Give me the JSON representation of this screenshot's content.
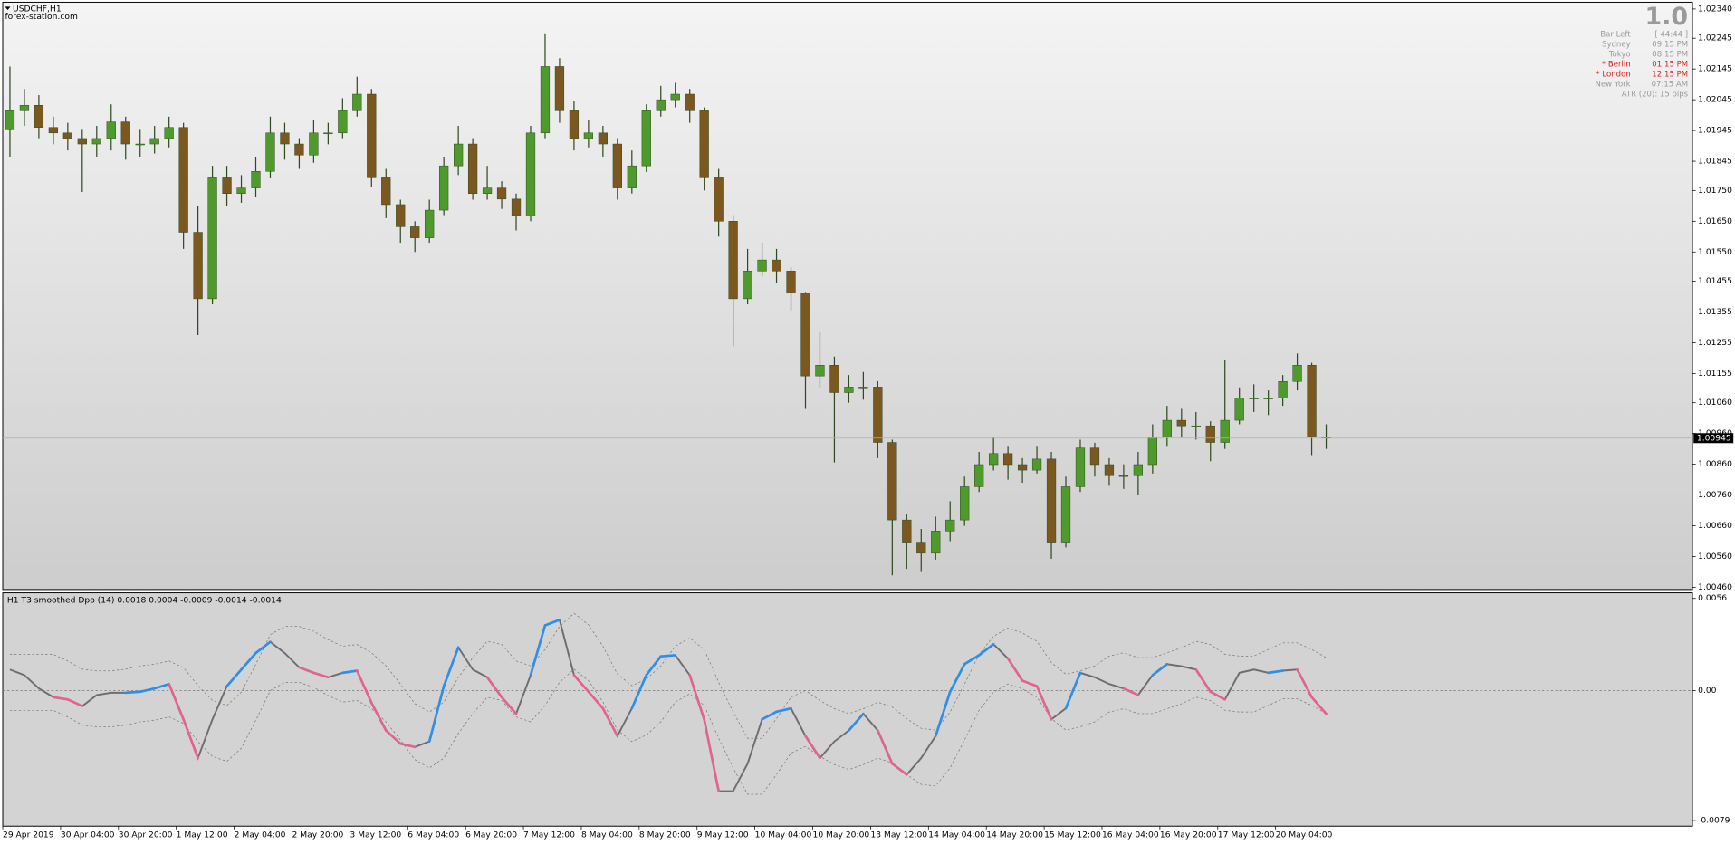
{
  "header": {
    "symbol": "USDCHF,H1",
    "source": "forex-station.com"
  },
  "info_panel": {
    "big": "1.0",
    "rows": [
      {
        "label": "Bar Left",
        "value": "[ 44:44 ]",
        "color": "#9a9a9a"
      },
      {
        "label": "Sydney",
        "value": "09:15 PM",
        "color": "#9a9a9a"
      },
      {
        "label": "Tokyo",
        "value": "08:15 PM",
        "color": "#9a9a9a"
      },
      {
        "label": "* Berlin",
        "value": "01:15 PM",
        "color": "#e02020"
      },
      {
        "label": "* London",
        "value": "12:15 PM",
        "color": "#e02020"
      },
      {
        "label": "New York",
        "value": "07:15 AM",
        "color": "#9a9a9a"
      },
      {
        "label": "ATR (20): 15 pips",
        "value": null,
        "color": "#9a9a9a"
      }
    ]
  },
  "chart_data": [
    {
      "type": "candlestick",
      "categories": [
        "29 Apr 2019",
        null,
        null,
        null,
        "30 Apr 04:00",
        null,
        null,
        null,
        "30 Apr 20:00",
        null,
        null,
        null,
        "1 May 12:00",
        null,
        null,
        null,
        "2 May 04:00",
        null,
        null,
        null,
        "2 May 20:00",
        null,
        null,
        null,
        "3 May 12:00",
        null,
        null,
        null,
        "6 May 04:00",
        null,
        null,
        null,
        "6 May 20:00",
        null,
        null,
        null,
        "7 May 12:00",
        null,
        null,
        null,
        "8 May 04:00",
        null,
        null,
        null,
        "8 May 20:00",
        null,
        null,
        null,
        "9 May 12:00",
        null,
        null,
        null,
        "10 May 04:00",
        null,
        null,
        null,
        "10 May 20:00",
        null,
        null,
        null,
        "13 May 12:00",
        null,
        null,
        null,
        "14 May 04:00",
        null,
        null,
        null,
        "14 May 20:00",
        null,
        null,
        null,
        "15 May 12:00",
        null,
        null,
        null,
        "16 May 04:00",
        null,
        null,
        null,
        "16 May 20:00",
        null,
        null,
        null,
        "17 May 12:00",
        null,
        null,
        null,
        "20 May 04:00",
        null,
        null,
        null
      ],
      "open": [
        1.0195,
        1.02009,
        1.02027,
        1.01955,
        1.01937,
        1.01919,
        1.01901,
        1.01919,
        1.01973,
        1.01901,
        1.01901,
        1.01919,
        1.01955,
        1.01614,
        1.01398,
        1.01794,
        1.0174,
        1.01758,
        1.01812,
        1.01937,
        1.01901,
        1.01865,
        1.01937,
        1.01937,
        1.02009,
        1.02063,
        1.01794,
        1.01704,
        1.01632,
        1.01596,
        1.01686,
        1.0183,
        1.01901,
        1.0174,
        1.01758,
        1.01722,
        1.01668,
        1.01937,
        1.02153,
        1.02009,
        1.01919,
        1.01937,
        1.01901,
        1.01758,
        1.0183,
        1.02009,
        1.02045,
        1.02063,
        1.02009,
        1.01794,
        1.0165,
        1.01398,
        1.01488,
        1.01524,
        1.01488,
        1.01416,
        1.01147,
        1.01182,
        1.01093,
        1.01111,
        1.01111,
        1.00931,
        1.00679,
        1.00607,
        1.00571,
        1.00643,
        1.00679,
        1.00787,
        1.00859,
        1.00895,
        1.00859,
        1.00841,
        1.00877,
        1.00607,
        1.00787,
        1.00913,
        1.00859,
        1.00823,
        1.00823,
        1.00859,
        1.00949,
        1.01003,
        1.00985,
        1.00985,
        1.00931,
        1.01003,
        1.01075,
        1.01075,
        1.01075,
        1.01129,
        1.01182,
        1.00949
      ],
      "high": [
        1.02153,
        1.0208,
        1.0206,
        1.0199,
        1.0197,
        1.0195,
        1.0196,
        1.0203,
        1.0199,
        1.0195,
        1.0196,
        1.0199,
        1.0197,
        1.017,
        1.0183,
        1.0183,
        1.018,
        1.0186,
        1.0199,
        1.0197,
        1.0192,
        1.0198,
        1.0197,
        1.0205,
        1.0212,
        1.0208,
        1.0182,
        1.0172,
        1.0165,
        1.0172,
        1.0186,
        1.0196,
        1.0192,
        1.0183,
        1.0178,
        1.0174,
        1.0196,
        1.02261,
        1.0218,
        1.0204,
        1.0198,
        1.0196,
        1.0192,
        1.0188,
        1.0203,
        1.0209,
        1.021,
        1.0208,
        1.0202,
        1.0182,
        1.0167,
        1.0156,
        1.0158,
        1.0156,
        1.015,
        1.0142,
        1.0129,
        1.0121,
        1.0115,
        1.0116,
        1.0113,
        1.0094,
        1.007,
        1.0065,
        1.0069,
        1.0074,
        1.0082,
        1.009,
        1.0095,
        1.0092,
        1.0088,
        1.0092,
        1.009,
        1.0082,
        1.0094,
        1.0093,
        1.0088,
        1.0086,
        1.009,
        1.0099,
        1.0105,
        1.0104,
        1.0103,
        1.01,
        1.012,
        1.0111,
        1.0112,
        1.011,
        1.0115,
        1.0122,
        1.0119,
        1.0099
      ],
      "low": [
        1.0186,
        1.0196,
        1.0192,
        1.019,
        1.0188,
        1.01745,
        1.0186,
        1.0188,
        1.0185,
        1.0186,
        1.0187,
        1.0189,
        1.0156,
        1.0128,
        1.0138,
        1.017,
        1.0171,
        1.0173,
        1.0179,
        1.0185,
        1.0182,
        1.0184,
        1.019,
        1.0192,
        1.0199,
        1.0176,
        1.0166,
        1.0158,
        1.0155,
        1.0158,
        1.0167,
        1.018,
        1.0172,
        1.0172,
        1.0169,
        1.0162,
        1.0165,
        1.0192,
        1.0197,
        1.0188,
        1.0189,
        1.0186,
        1.0172,
        1.0174,
        1.0181,
        1.0199,
        1.0202,
        1.0197,
        1.0175,
        1.016,
        1.01244,
        1.0138,
        1.0147,
        1.0145,
        1.0136,
        1.0104,
        1.0111,
        1.00866,
        1.0106,
        1.0107,
        1.0088,
        1.00499,
        1.0052,
        1.0051,
        1.0055,
        1.0061,
        1.0066,
        1.0077,
        1.0084,
        1.0081,
        1.008,
        1.0083,
        1.00553,
        1.0059,
        1.0077,
        1.0082,
        1.0079,
        1.0078,
        1.0076,
        1.0083,
        1.0092,
        1.0095,
        1.0094,
        1.0087,
        1.0091,
        1.0099,
        1.0103,
        1.0102,
        1.0105,
        1.011,
        1.0089,
        1.0091
      ],
      "close": [
        1.02009,
        1.02027,
        1.01955,
        1.01937,
        1.01919,
        1.01901,
        1.01919,
        1.01973,
        1.01901,
        1.01901,
        1.01919,
        1.01955,
        1.01614,
        1.01398,
        1.01794,
        1.0174,
        1.01758,
        1.01812,
        1.01937,
        1.01901,
        1.01865,
        1.01937,
        1.01937,
        1.02009,
        1.02063,
        1.01794,
        1.01704,
        1.01632,
        1.01596,
        1.01686,
        1.0183,
        1.01901,
        1.0174,
        1.01758,
        1.01722,
        1.01668,
        1.01937,
        1.02153,
        1.02009,
        1.01919,
        1.01937,
        1.01901,
        1.01758,
        1.0183,
        1.02009,
        1.02045,
        1.02063,
        1.02009,
        1.01794,
        1.0165,
        1.01398,
        1.01488,
        1.01524,
        1.01488,
        1.01416,
        1.01147,
        1.01182,
        1.01093,
        1.01111,
        1.01111,
        1.00931,
        1.00679,
        1.00607,
        1.00571,
        1.00643,
        1.00679,
        1.00787,
        1.00859,
        1.00895,
        1.00859,
        1.00841,
        1.00877,
        1.00607,
        1.00787,
        1.00913,
        1.00859,
        1.00823,
        1.00823,
        1.00859,
        1.00949,
        1.01003,
        1.00985,
        1.00985,
        1.00931,
        1.01003,
        1.01075,
        1.01075,
        1.01075,
        1.01129,
        1.01182,
        1.00949,
        1.00945
      ],
      "up_color": "#4f9a2c",
      "down_color": "#7a5820",
      "wick_color": "#2f4a20",
      "ylim": [
        1.00453,
        1.02362
      ],
      "yticks": [
        {
          "value": 1.0234,
          "label": "1.02340"
        },
        {
          "value": 1.02245,
          "label": "1.02245"
        },
        {
          "value": 1.02145,
          "label": "1.02145"
        },
        {
          "value": 1.02045,
          "label": "1.02045"
        },
        {
          "value": 1.01945,
          "label": "1.01945"
        },
        {
          "value": 1.01845,
          "label": "1.01845"
        },
        {
          "value": 1.0175,
          "label": "1.01750"
        },
        {
          "value": 1.0165,
          "label": "1.01650"
        },
        {
          "value": 1.0155,
          "label": "1.01550"
        },
        {
          "value": 1.01455,
          "label": "1.01455"
        },
        {
          "value": 1.01355,
          "label": "1.01355"
        },
        {
          "value": 1.01255,
          "label": "1.01255"
        },
        {
          "value": 1.01155,
          "label": "1.01155"
        },
        {
          "value": 1.0106,
          "label": "1.01060"
        },
        {
          "value": 1.0096,
          "label": "1.00960"
        },
        {
          "value": 1.0086,
          "label": "1.00860"
        },
        {
          "value": 1.0076,
          "label": "1.00760"
        },
        {
          "value": 1.0066,
          "label": "1.00660"
        },
        {
          "value": 1.0056,
          "label": "1.00560"
        },
        {
          "value": 1.0046,
          "label": "1.00460"
        }
      ],
      "current_price": {
        "value": 1.00945,
        "label": "1.00945"
      }
    },
    {
      "type": "line",
      "title": "H1 T3 smoothed Dpo (14) 0.0018 0.0004 -0.0009 -0.0014 -0.0014",
      "up_color": "#2f8ee8",
      "down_color": "#e0648c",
      "series": [
        {
          "color": "#6e6e6e",
          "style": "solid",
          "values": [
            0.00128,
            0.00094,
            0.00013,
            -0.0004,
            -0.00054,
            -0.00094,
            -0.00027,
            -0.00013,
            -0.00013,
            -7e-05,
            0.00013,
            0.0004,
            -0.00175,
            -0.0041,
            -0.00175,
            0.00027,
            0.00128,
            0.00228,
            0.00296,
            0.00228,
            0.00141,
            0.00108,
            0.00081,
            0.00108,
            0.00121,
            -0.00074,
            -0.00242,
            -0.00323,
            -0.00343,
            -0.00309,
            0.00027,
            0.00262,
            0.00128,
            0.00081,
            -0.0004,
            -0.00141,
            0.00094,
            0.00396,
            0.0043,
            0.00094,
            -7e-05,
            -0.00108,
            -0.00276,
            -0.00108,
            0.00094,
            0.00208,
            0.00215,
            0.00094,
            -0.00175,
            -0.00611,
            -0.00611,
            -0.00444,
            -0.00175,
            -0.00128,
            -0.00108,
            -0.00276,
            -0.0041,
            -0.00309,
            -0.00242,
            -0.00141,
            -0.00242,
            -0.00444,
            -0.00511,
            -0.0041,
            -0.00276,
            -7e-05,
            0.00161,
            0.00215,
            0.00282,
            0.00195,
            0.0006,
            0.00027,
            -0.00175,
            -0.00108,
            0.00108,
            0.00081,
            0.0004,
            0.00013,
            -0.00027,
            0.00094,
            0.00161,
            0.00148,
            0.00128,
            -7e-05,
            -0.00054,
            0.00108,
            0.00128,
            0.00108,
            0.00121,
            0.00128,
            -0.0004,
            -0.00141
          ]
        },
        {
          "color": "#7a7a7a",
          "style": "dashed",
          "values": [
            0.0022,
            0.0022,
            0.0022,
            0.0022,
            0.0018,
            0.0013,
            0.0012,
            0.0012,
            0.0013,
            0.0015,
            0.0016,
            0.0018,
            0.0014,
            0.0003,
            -0.0006,
            -0.0009,
            -0.0001,
            0.0016,
            0.0034,
            0.0039,
            0.0039,
            0.0036,
            0.0031,
            0.0027,
            0.0028,
            0.0023,
            0.0015,
            0.0004,
            -0.0008,
            -0.0013,
            -0.0007,
            0.0008,
            0.002,
            0.003,
            0.0028,
            0.0018,
            0.0015,
            0.0025,
            0.0039,
            0.0047,
            0.004,
            0.0027,
            0.001,
            0.0003,
            0.0007,
            0.0015,
            0.0027,
            0.0032,
            0.0025,
            0.0005,
            -0.0013,
            -0.0029,
            -0.0029,
            -0.0017,
            -0.0004,
            0,
            -0.0006,
            -0.0011,
            -0.0014,
            -0.0011,
            -0.0007,
            -0.001,
            -0.0017,
            -0.0023,
            -0.0024,
            -0.0013,
            0.0004,
            0.0022,
            0.0033,
            0.0038,
            0.0035,
            0.003,
            0.0017,
            0.001,
            0.0012,
            0.0015,
            0.0021,
            0.0023,
            0.002,
            0.002,
            0.0023,
            0.0026,
            0.003,
            0.0028,
            0.0022,
            0.0021,
            0.0021,
            0.0025,
            0.0029,
            0.0029,
            0.0025,
            0.002
          ]
        },
        {
          "color": "#7a7a7a",
          "style": "dashed",
          "values": [
            -0.0012,
            -0.0012,
            -0.0012,
            -0.0012,
            -0.0016,
            -0.0021,
            -0.0022,
            -0.0022,
            -0.0021,
            -0.0019,
            -0.0018,
            -0.0016,
            -0.002,
            -0.0031,
            -0.004,
            -0.0043,
            -0.0035,
            -0.0018,
            0,
            0.0005,
            0.0005,
            0.0002,
            -0.0003,
            -0.0007,
            -0.0006,
            -0.0011,
            -0.0019,
            -0.003,
            -0.0042,
            -0.0047,
            -0.0041,
            -0.0026,
            -0.0014,
            -0.0004,
            -0.0006,
            -0.0016,
            -0.0019,
            -0.0009,
            0.0005,
            0.0013,
            0.0006,
            -0.0007,
            -0.0024,
            -0.0031,
            -0.0027,
            -0.0019,
            -0.0007,
            -0.0002,
            -0.0009,
            -0.0029,
            -0.0047,
            -0.0063,
            -0.0063,
            -0.0051,
            -0.0038,
            -0.0034,
            -0.004,
            -0.0045,
            -0.0048,
            -0.0045,
            -0.0041,
            -0.0044,
            -0.0051,
            -0.0057,
            -0.0058,
            -0.0047,
            -0.003,
            -0.0012,
            -0.0001,
            0.0004,
            0.0001,
            -0.0004,
            -0.0017,
            -0.0024,
            -0.0022,
            -0.0019,
            -0.0013,
            -0.0011,
            -0.0014,
            -0.0014,
            -0.0011,
            -0.0008,
            -0.0004,
            -0.0006,
            -0.0012,
            -0.0013,
            -0.0013,
            -0.0009,
            -0.0005,
            -0.0005,
            -0.0009,
            -0.0014
          ]
        }
      ],
      "ylim": [
        -0.00824,
        0.00594
      ],
      "yticks": [
        0.0056,
        {
          "value": 0,
          "label": "0.00"
        },
        -0.0079
      ],
      "zero_line": true
    }
  ]
}
